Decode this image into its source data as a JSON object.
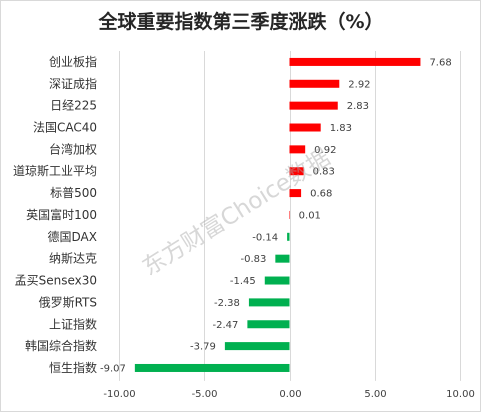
{
  "watermark": "东方财富Choice数据",
  "chart_data": {
    "type": "bar",
    "orientation": "horizontal",
    "title": "全球重要指数第三季度涨跌（%）",
    "categories": [
      "创业板指",
      "深证成指",
      "日经225",
      "法国CAC40",
      "台湾加权",
      "道琼斯工业平均",
      "标普500",
      "英国富时100",
      "德国DAX",
      "纳斯达克",
      "孟买Sensex30",
      "俄罗斯RTS",
      "上证指数",
      "韩国综合指数",
      "恒生指数"
    ],
    "values": [
      7.68,
      2.92,
      2.83,
      1.83,
      0.92,
      0.83,
      0.68,
      0.01,
      -0.14,
      -0.83,
      -1.45,
      -2.38,
      -2.47,
      -3.79,
      -9.07
    ],
    "xlim": [
      -10,
      10
    ],
    "xticks": [
      "-10.00",
      "-5.00",
      "0.00",
      "5.00",
      "10.00"
    ],
    "grid": true,
    "colors": {
      "positive": "#FF0000",
      "negative": "#00B050"
    }
  }
}
